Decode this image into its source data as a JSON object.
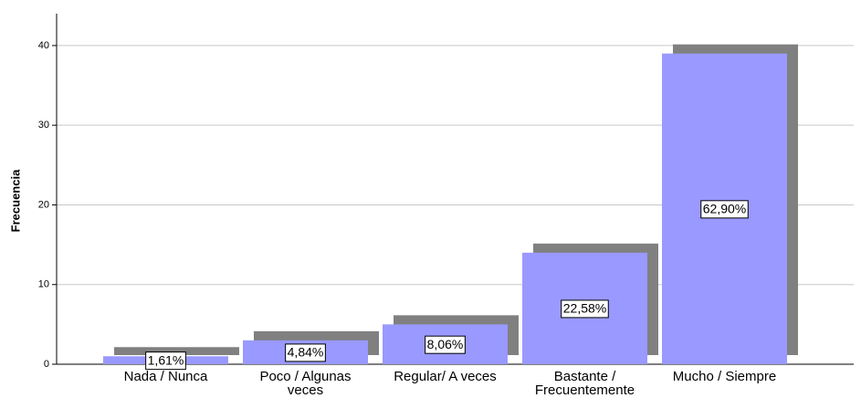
{
  "chart_data": {
    "type": "bar",
    "categories": [
      "Nada / Nunca",
      "Poco / Algunas veces",
      "Regular/ A veces",
      "Bastante / Frecuentemente",
      "Mucho / Siempre"
    ],
    "values": [
      1,
      3,
      5,
      14,
      39
    ],
    "percent_labels": [
      "1,61%",
      "4,84%",
      "8,06%",
      "22,58%",
      "62,90%"
    ],
    "color": "#9999ff",
    "shadow_color": "#808080",
    "ylabel": "Frecuencia",
    "ylim": [
      0,
      44
    ],
    "yticks": [
      0,
      10,
      20,
      30,
      40
    ],
    "grid": true
  }
}
